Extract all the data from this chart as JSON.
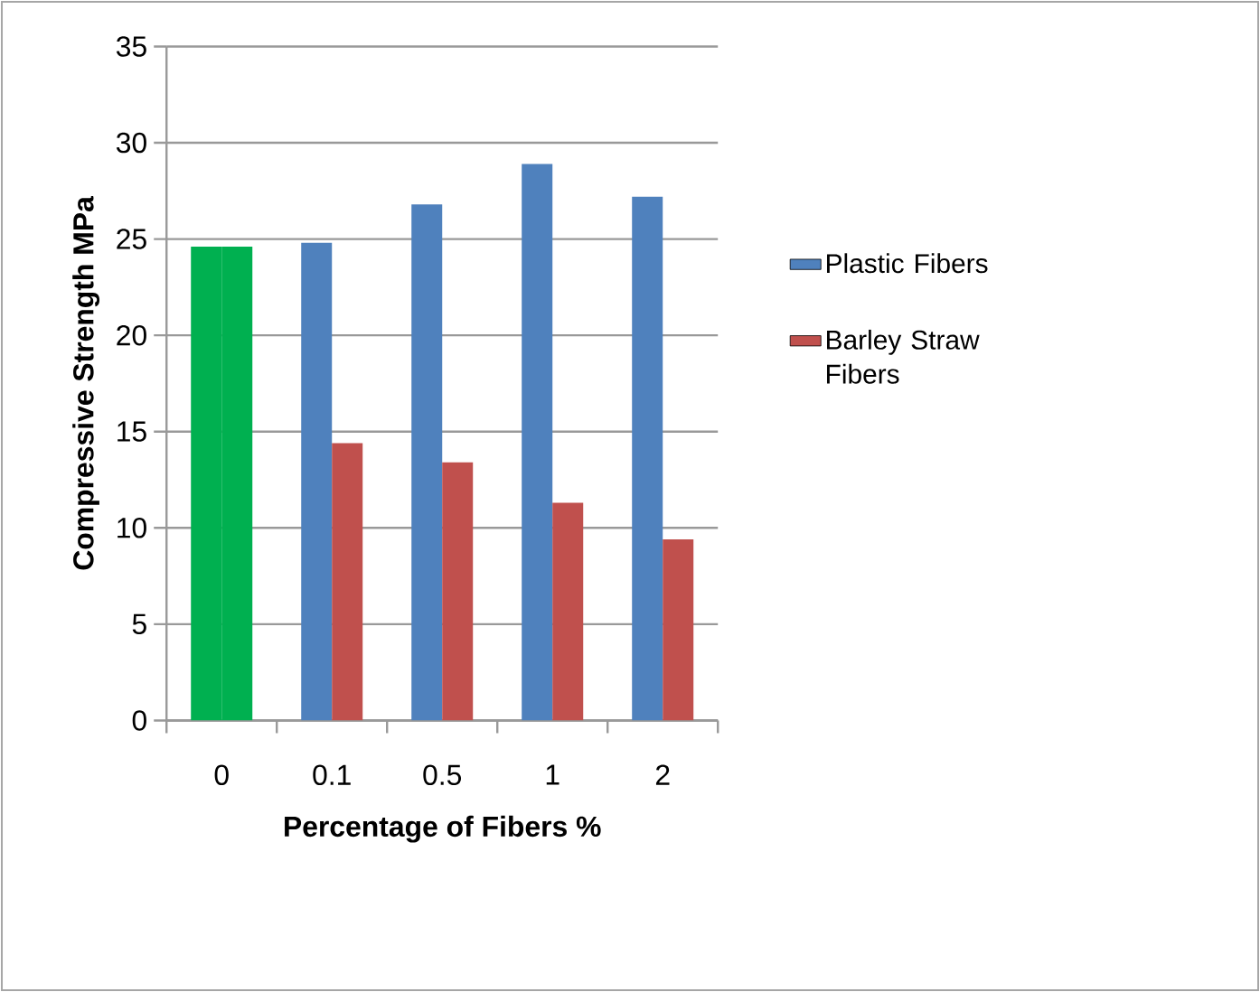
{
  "chart_data": {
    "type": "bar",
    "xlabel": "Percentage of Fibers %",
    "ylabel": "Compressive Strength MPa",
    "categories": [
      "0",
      "0.1",
      "0.5",
      "1",
      "2"
    ],
    "series": [
      {
        "name": "Plastic Fibers",
        "color": "#4f81bd",
        "colors": [
          "#00b050",
          "#4f81bd",
          "#4f81bd",
          "#4f81bd",
          "#4f81bd"
        ],
        "values": [
          24.6,
          24.8,
          26.8,
          28.9,
          27.2
        ]
      },
      {
        "name": "Barley Straw Fibers",
        "color": "#c0504d",
        "colors": [
          "#00b050",
          "#c0504d",
          "#c0504d",
          "#c0504d",
          "#c0504d"
        ],
        "values": [
          24.6,
          14.4,
          13.4,
          11.3,
          9.4
        ]
      }
    ],
    "ylim": [
      0,
      35
    ],
    "yticks": [
      0,
      5,
      10,
      15,
      20,
      25,
      30,
      35
    ],
    "grid": "y",
    "legend": "right"
  }
}
